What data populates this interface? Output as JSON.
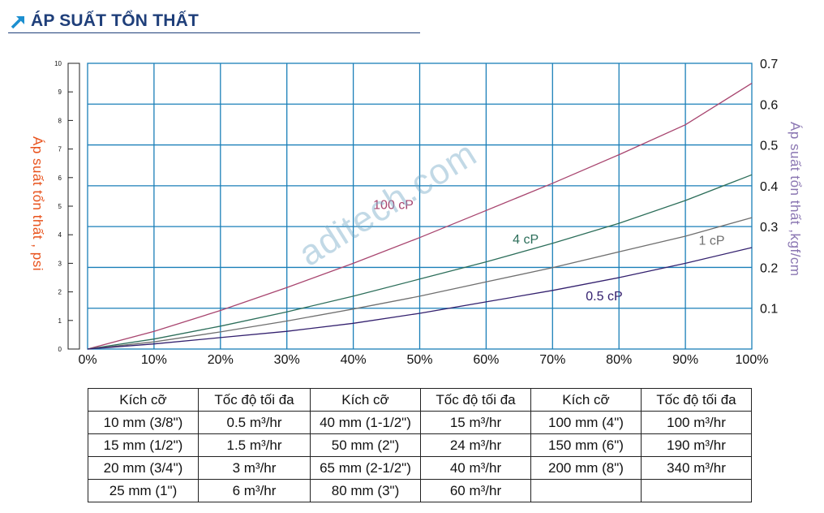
{
  "title": "ÁP SUẤT TỔN THẤT",
  "watermark": "aditech.com",
  "chart_data": {
    "type": "line",
    "title": "ÁP SUẤT TỔN THẤT",
    "xlabel": "",
    "ylabel_left": "Áp suất tổn thất , psi",
    "ylabel_right": "Áp suất tổn thất ,kgf/cm",
    "xlim": [
      0,
      100
    ],
    "ylim": [
      0,
      10
    ],
    "ylim_right": [
      0,
      0.7
    ],
    "x_ticks": [
      "0%",
      "10%",
      "20%",
      "30%",
      "40%",
      "50%",
      "60%",
      "70%",
      "80%",
      "90%",
      "100%"
    ],
    "y_ticks_left": [
      "0",
      "1",
      "2",
      "3",
      "4",
      "5",
      "6",
      "7",
      "8",
      "9",
      "10"
    ],
    "y_ticks_right": [
      "0.1",
      "0.2",
      "0.3",
      "0.4",
      "0.5",
      "0.6",
      "0.7"
    ],
    "grid": true,
    "series": [
      {
        "name": "100 cP",
        "color": "#a8456f",
        "label_x": 43,
        "label_y": 4.9,
        "x": [
          0,
          10,
          20,
          30,
          40,
          50,
          60,
          70,
          80,
          90,
          100
        ],
        "y": [
          0,
          0.62,
          1.35,
          2.15,
          3.0,
          3.9,
          4.85,
          5.8,
          6.8,
          7.85,
          9.3
        ]
      },
      {
        "name": "4 cP",
        "color": "#2c6e5a",
        "label_x": 64,
        "label_y": 3.7,
        "x": [
          0,
          10,
          20,
          30,
          40,
          50,
          60,
          70,
          80,
          90,
          100
        ],
        "y": [
          0,
          0.35,
          0.8,
          1.3,
          1.85,
          2.45,
          3.05,
          3.7,
          4.4,
          5.2,
          6.1
        ]
      },
      {
        "name": "1 cP",
        "color": "#6f6f6f",
        "label_x": 92,
        "label_y": 3.65,
        "x": [
          0,
          10,
          20,
          30,
          40,
          50,
          60,
          70,
          80,
          90,
          100
        ],
        "y": [
          0,
          0.25,
          0.6,
          0.98,
          1.4,
          1.85,
          2.35,
          2.85,
          3.4,
          3.95,
          4.6
        ]
      },
      {
        "name": "0.5 cP",
        "color": "#33206e",
        "label_x": 75,
        "label_y": 1.7,
        "x": [
          0,
          10,
          20,
          30,
          40,
          50,
          60,
          70,
          80,
          90,
          100
        ],
        "y": [
          0,
          0.18,
          0.4,
          0.62,
          0.9,
          1.25,
          1.65,
          2.05,
          2.5,
          3.0,
          3.55
        ]
      }
    ]
  },
  "table": {
    "headers": [
      "Kích cỡ",
      "Tốc độ tối đa",
      "Kích cỡ",
      "Tốc độ tối đa",
      "Kích cỡ",
      "Tốc độ tối đa"
    ],
    "rows": [
      [
        "10 mm (3/8\")",
        "0.5 m³/hr",
        "40 mm (1-1/2\")",
        "15 m³/hr",
        "100 mm (4\")",
        "100 m³/hr"
      ],
      [
        "15 mm (1/2\")",
        "1.5 m³/hr",
        "50 mm (2\")",
        "24 m³/hr",
        "150 mm (6\")",
        "190 m³/hr"
      ],
      [
        "20 mm (3/4\")",
        "3 m³/hr",
        "65 mm (2-1/2\")",
        "40 m³/hr",
        "200 mm (8\")",
        "340 m³/hr"
      ],
      [
        "25 mm (1\")",
        "6 m³/hr",
        "80 mm (3\")",
        "60 m³/hr",
        "",
        ""
      ]
    ]
  }
}
